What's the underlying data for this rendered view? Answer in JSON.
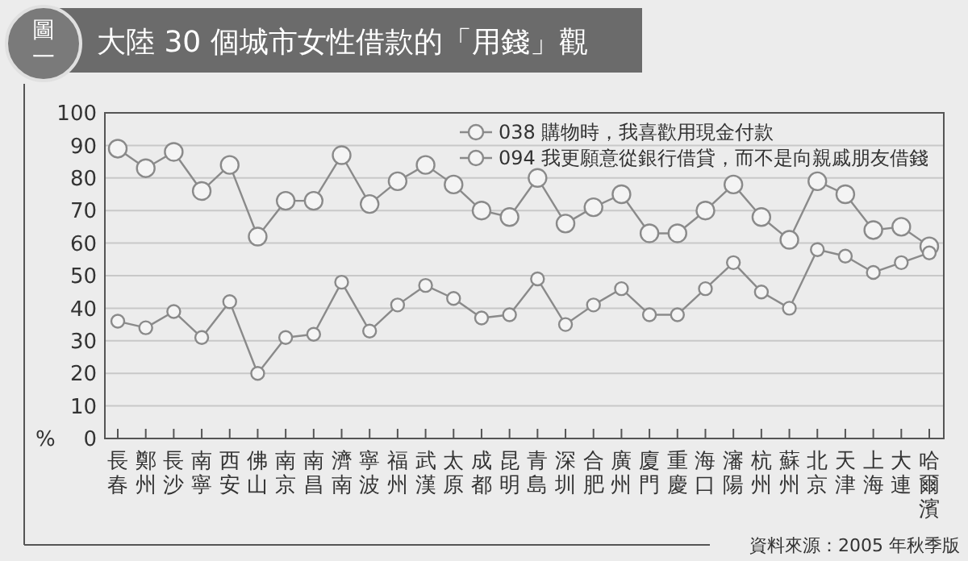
{
  "chart_data": {
    "type": "line",
    "title": "大陸 30 個城市女性借款的「用錢」觀",
    "ylabel": "%",
    "annotations": [
      "圖一",
      "資料來源：2005 年秋季版"
    ],
    "categories": [
      "長春",
      "鄭州",
      "長沙",
      "南寧",
      "西安",
      "佛山",
      "南京",
      "南昌",
      "濟南",
      "寧波",
      "福州",
      "武漢",
      "太原",
      "成都",
      "昆明",
      "青島",
      "深圳",
      "合肥",
      "廣州",
      "廈門",
      "重慶",
      "海口",
      "瀋陽",
      "杭州",
      "蘇州",
      "北京",
      "天津",
      "上海",
      "大連",
      "哈爾濱"
    ],
    "series": [
      {
        "name": "038 購物時，我喜歡用現金付款",
        "color": "#8a8a8a",
        "values": [
          89,
          83,
          88,
          76,
          84,
          62,
          73,
          73,
          87,
          72,
          79,
          84,
          78,
          70,
          68,
          80,
          66,
          71,
          75,
          63,
          63,
          70,
          78,
          68,
          61,
          79,
          75,
          64,
          65,
          59
        ]
      },
      {
        "name": "094 我更願意從銀行借貸，而不是向親戚朋友借錢",
        "color": "#8a8a8a",
        "values": [
          36,
          34,
          39,
          31,
          42,
          20,
          31,
          32,
          48,
          33,
          41,
          47,
          43,
          37,
          38,
          49,
          35,
          41,
          46,
          38,
          38,
          46,
          54,
          45,
          40,
          58,
          56,
          51,
          54,
          57
        ]
      }
    ],
    "ylim": [
      0,
      100
    ],
    "yticks": [
      0,
      10,
      20,
      30,
      40,
      50,
      60,
      70,
      80,
      90,
      100
    ],
    "grid": "y",
    "legend": "top right",
    "marker": "circle",
    "line_style": "solid"
  }
}
